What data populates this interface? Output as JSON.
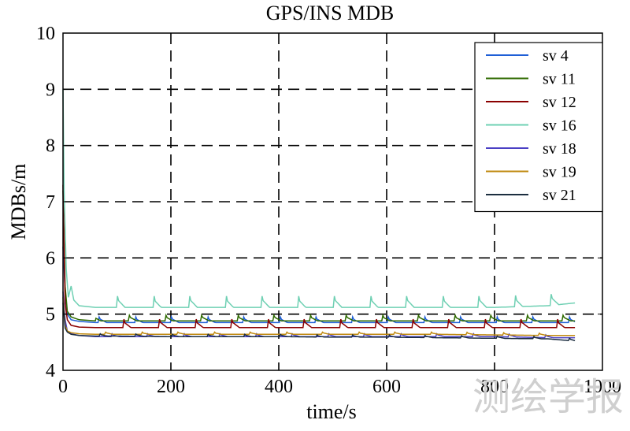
{
  "chart_data": {
    "type": "line",
    "title": "GPS/INS MDB",
    "xlabel": "time/s",
    "ylabel": "MDBs/m",
    "xlim": [
      0,
      1000
    ],
    "ylim": [
      4,
      10
    ],
    "xticks": [
      0,
      200,
      400,
      600,
      800,
      1000
    ],
    "yticks": [
      4,
      5,
      6,
      7,
      8,
      9,
      10
    ],
    "grid": true,
    "grid_style": "dashed",
    "legend_position": "top-right",
    "series": [
      {
        "name": "sv 4",
        "color": "#1f5fd6",
        "x": [
          0,
          4,
          8,
          15,
          30,
          60,
          100,
          200,
          300,
          400,
          500,
          600,
          700,
          800,
          900,
          950
        ],
        "y": [
          6.2,
          5.4,
          5.0,
          4.9,
          4.87,
          4.85,
          4.85,
          4.85,
          4.85,
          4.85,
          4.85,
          4.85,
          4.85,
          4.85,
          4.85,
          4.85
        ],
        "spike_period": 67,
        "spike_amp": 0.1
      },
      {
        "name": "sv 11",
        "color": "#2f6b00",
        "x": [
          0,
          4,
          8,
          15,
          30,
          60,
          100,
          200,
          300,
          400,
          500,
          600,
          700,
          800,
          900,
          950
        ],
        "y": [
          7.2,
          5.5,
          5.05,
          4.95,
          4.9,
          4.88,
          4.88,
          4.88,
          4.88,
          4.88,
          4.88,
          4.88,
          4.88,
          4.88,
          4.88,
          4.88
        ],
        "spike_period": 67,
        "spike_amp": 0.1
      },
      {
        "name": "sv 12",
        "color": "#8b0000",
        "x": [
          0,
          4,
          8,
          15,
          30,
          60,
          100,
          200,
          300,
          400,
          500,
          600,
          700,
          800,
          900,
          950
        ],
        "y": [
          7.3,
          5.2,
          4.9,
          4.8,
          4.77,
          4.76,
          4.76,
          4.76,
          4.76,
          4.76,
          4.76,
          4.76,
          4.76,
          4.76,
          4.76,
          4.76
        ],
        "spike_period": 67,
        "spike_amp": 0.15
      },
      {
        "name": "sv 16",
        "color": "#6fd0b3",
        "x": [
          0,
          2,
          6,
          10,
          15,
          20,
          30,
          60,
          100,
          200,
          300,
          400,
          500,
          600,
          700,
          800,
          900,
          950
        ],
        "y": [
          9.0,
          7.2,
          5.8,
          5.3,
          5.5,
          5.25,
          5.15,
          5.12,
          5.12,
          5.12,
          5.12,
          5.12,
          5.12,
          5.12,
          5.12,
          5.12,
          5.15,
          5.2
        ],
        "spike_period": 67,
        "spike_amp": 0.2
      },
      {
        "name": "sv 18",
        "color": "#4a3fc4",
        "x": [
          0,
          4,
          8,
          15,
          30,
          60,
          100,
          200,
          300,
          400,
          500,
          600,
          700,
          800,
          900,
          950
        ],
        "y": [
          5.4,
          4.9,
          4.7,
          4.65,
          4.62,
          4.6,
          4.6,
          4.6,
          4.6,
          4.6,
          4.6,
          4.6,
          4.6,
          4.6,
          4.58,
          4.58
        ],
        "spike_period": 67,
        "spike_amp": 0.05
      },
      {
        "name": "sv 19",
        "color": "#c08a10",
        "x": [
          0,
          4,
          8,
          15,
          30,
          60,
          100,
          200,
          300,
          400,
          500,
          600,
          700,
          800,
          900,
          950
        ],
        "y": [
          5.3,
          4.8,
          4.7,
          4.67,
          4.65,
          4.64,
          4.64,
          4.64,
          4.64,
          4.64,
          4.64,
          4.64,
          4.64,
          4.63,
          4.62,
          4.62
        ],
        "spike_period": 67,
        "spike_amp": 0.04
      },
      {
        "name": "sv 21",
        "color": "#1c2e40",
        "x": [
          0,
          4,
          8,
          15,
          30,
          60,
          100,
          200,
          300,
          400,
          500,
          600,
          700,
          800,
          900,
          950
        ],
        "y": [
          5.2,
          4.75,
          4.68,
          4.64,
          4.62,
          4.61,
          4.61,
          4.6,
          4.6,
          4.6,
          4.59,
          4.59,
          4.58,
          4.57,
          4.56,
          4.52
        ],
        "spike_period": 67,
        "spike_amp": 0.04
      }
    ]
  },
  "watermark": "测绘学报"
}
